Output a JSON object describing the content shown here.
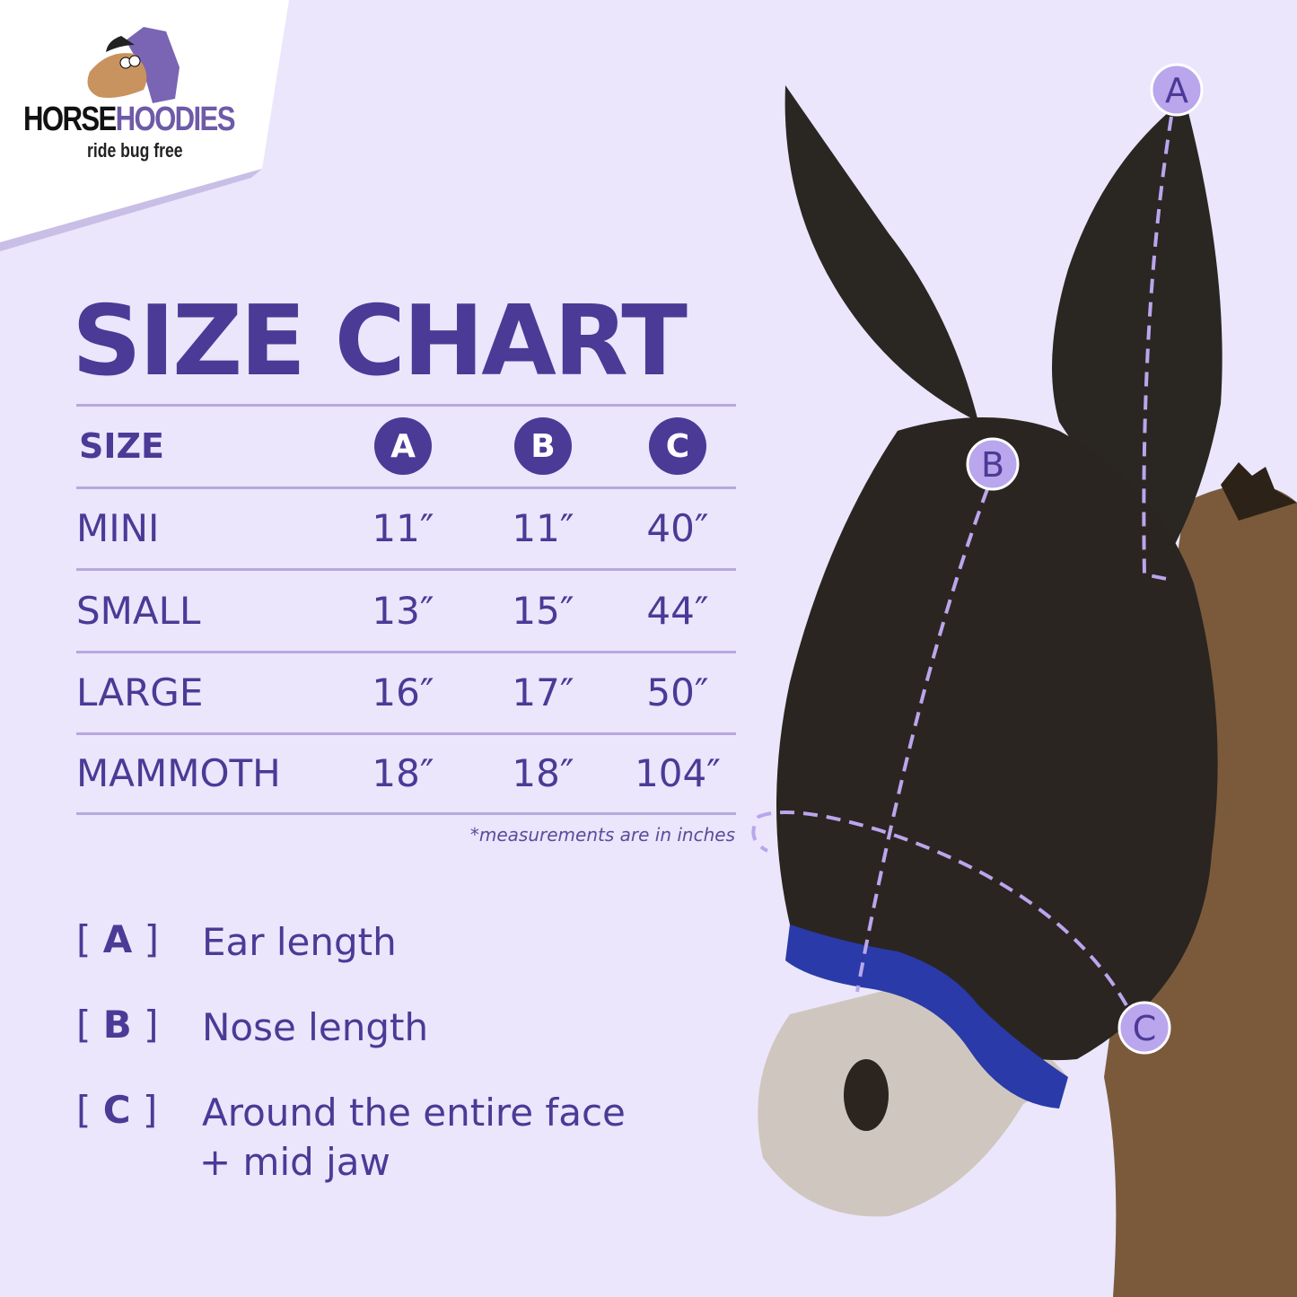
{
  "logo": {
    "brand_part1": "HORSE",
    "brand_part2": "HOODIES",
    "tagline": "ride bug free"
  },
  "title": "SIZE CHART",
  "table": {
    "headers": [
      "SIZE",
      "A",
      "B",
      "C"
    ],
    "rows": [
      [
        "MINI",
        "11″",
        "11″",
        "40″"
      ],
      [
        "SMALL",
        "13″",
        "15″",
        "44″"
      ],
      [
        "LARGE",
        "16″",
        "17″",
        "50″"
      ],
      [
        "MAMMOTH",
        "18″",
        "18″",
        "104″"
      ]
    ]
  },
  "note": "*measurements are in inches",
  "legend": [
    {
      "key": "A",
      "label": "Ear length"
    },
    {
      "key": "B",
      "label": "Nose length"
    },
    {
      "key": "C",
      "label": "Around the entire face",
      "label2": "+ mid jaw"
    }
  ],
  "markers": [
    "A",
    "B",
    "C"
  ],
  "colors": {
    "background": "#ebe6fb",
    "accent": "#4b3a96",
    "marker": "#b9a6ec"
  }
}
